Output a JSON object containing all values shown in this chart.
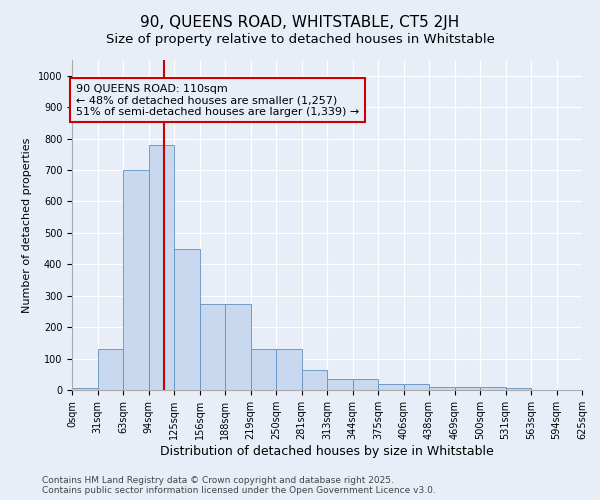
{
  "title_line1": "90, QUEENS ROAD, WHITSTABLE, CT5 2JH",
  "title_line2": "Size of property relative to detached houses in Whitstable",
  "xlabel": "Distribution of detached houses by size in Whitstable",
  "ylabel": "Number of detached properties",
  "bar_color": "#c8d8ee",
  "bar_edge_color": "#6090c0",
  "background_color": "#e8eef8",
  "bin_labels": [
    "0sqm",
    "31sqm",
    "63sqm",
    "94sqm",
    "125sqm",
    "156sqm",
    "188sqm",
    "219sqm",
    "250sqm",
    "281sqm",
    "313sqm",
    "344sqm",
    "375sqm",
    "406sqm",
    "438sqm",
    "469sqm",
    "500sqm",
    "531sqm",
    "563sqm",
    "594sqm",
    "625sqm"
  ],
  "n_bins": 20,
  "bar_heights": [
    5,
    130,
    700,
    780,
    450,
    275,
    275,
    130,
    130,
    65,
    35,
    35,
    20,
    20,
    10,
    10,
    10,
    5,
    0,
    0
  ],
  "vline_bin": 3.6,
  "vline_color": "#cc0000",
  "annotation_line1": "90 QUEENS ROAD: 110sqm",
  "annotation_line2": "← 48% of detached houses are smaller (1,257)",
  "annotation_line3": "51% of semi-detached houses are larger (1,339) →",
  "ylim": [
    0,
    1050
  ],
  "yticks": [
    0,
    100,
    200,
    300,
    400,
    500,
    600,
    700,
    800,
    900,
    1000
  ],
  "footer_text": "Contains HM Land Registry data © Crown copyright and database right 2025.\nContains public sector information licensed under the Open Government Licence v3.0.",
  "grid_color": "#ffffff",
  "title_fontsize": 11,
  "subtitle_fontsize": 9.5,
  "ylabel_fontsize": 8,
  "xlabel_fontsize": 9,
  "tick_fontsize": 7,
  "annotation_fontsize": 8,
  "footer_fontsize": 6.5
}
